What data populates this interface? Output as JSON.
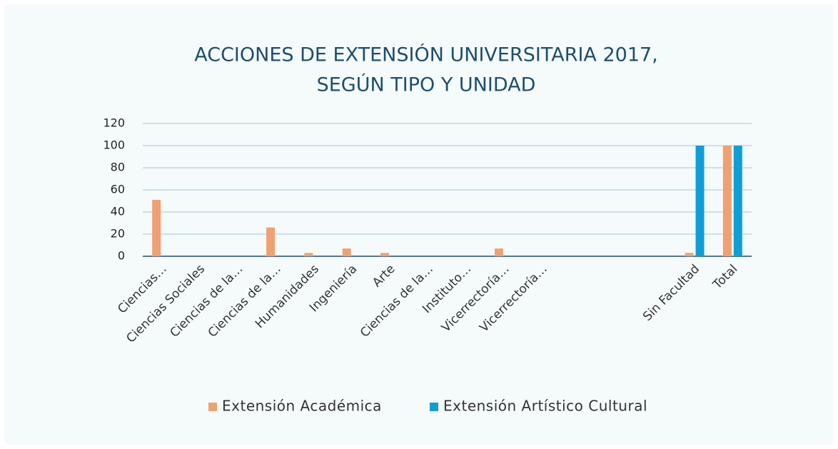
{
  "chart_data": {
    "type": "bar",
    "title": [
      "ACCIONES DE EXTENSIÓN UNIVERSITARIA 2017,",
      "SEGÚN TIPO Y UNIDAD"
    ],
    "categories": [
      "Ciencias…",
      "Ciencias Sociales",
      "Ciencias de la…",
      "Ciencias de la…",
      "Humanidades",
      "Ingeniería",
      "Arte",
      "Ciencias de la…",
      "Instituto…",
      "Vicerrectoría…",
      "Vicerrectoría…",
      null,
      null,
      null,
      "Sin Facultad",
      "Total"
    ],
    "series": [
      {
        "name": "Extensión Académica",
        "color": "#f0a172",
        "values": [
          51,
          0,
          0,
          26,
          3,
          7,
          3,
          0,
          0,
          7,
          0,
          0,
          0,
          0,
          3,
          100
        ]
      },
      {
        "name": "Extensión Artístico Cultural",
        "color": "#0f9fd6",
        "values": [
          0,
          0,
          0,
          0,
          0,
          0,
          0,
          0,
          0,
          0,
          0,
          0,
          0,
          0,
          100,
          100
        ]
      }
    ],
    "ylim": [
      0,
      120
    ],
    "yticks": [
      0,
      20,
      40,
      60,
      80,
      100,
      120
    ],
    "grid": true,
    "legend": "bottom"
  }
}
